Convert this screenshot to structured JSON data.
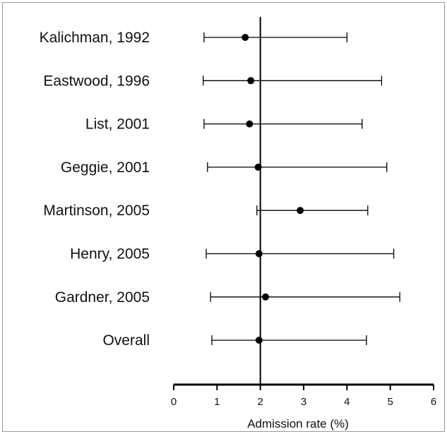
{
  "chart_data": {
    "type": "forest",
    "xlabel": "Admission rate (%)",
    "xlim": [
      0,
      6
    ],
    "xticks": [
      0,
      1,
      2,
      3,
      4,
      5,
      6
    ],
    "reference_line": 2.0,
    "rows": [
      {
        "label": "Kalichman, 1992",
        "estimate": 1.65,
        "lower": 0.7,
        "upper": 4.0
      },
      {
        "label": "Eastwood, 1996",
        "estimate": 1.78,
        "lower": 0.68,
        "upper": 4.8
      },
      {
        "label": "List, 2001",
        "estimate": 1.75,
        "lower": 0.7,
        "upper": 4.35
      },
      {
        "label": "Geggie, 2001",
        "estimate": 1.95,
        "lower": 0.78,
        "upper": 4.92
      },
      {
        "label": "Martinson, 2005",
        "estimate": 2.92,
        "lower": 1.92,
        "upper": 4.48
      },
      {
        "label": "Henry, 2005",
        "estimate": 1.97,
        "lower": 0.75,
        "upper": 5.08
      },
      {
        "label": "Gardner, 2005",
        "estimate": 2.12,
        "lower": 0.85,
        "upper": 5.22
      },
      {
        "label": "Overall",
        "estimate": 1.97,
        "lower": 0.88,
        "upper": 4.45
      }
    ]
  }
}
